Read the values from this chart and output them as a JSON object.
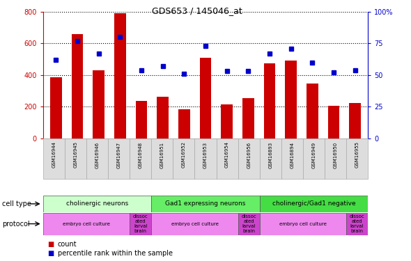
{
  "title": "GDS653 / 145046_at",
  "samples": [
    "GSM16944",
    "GSM16945",
    "GSM16946",
    "GSM16947",
    "GSM16948",
    "GSM16951",
    "GSM16952",
    "GSM16953",
    "GSM16954",
    "GSM16956",
    "GSM16893",
    "GSM16894",
    "GSM16949",
    "GSM16950",
    "GSM16955"
  ],
  "counts": [
    385,
    660,
    430,
    790,
    235,
    265,
    185,
    510,
    215,
    255,
    475,
    490,
    345,
    205,
    225
  ],
  "percentiles": [
    62,
    77,
    67,
    80,
    54,
    57,
    51,
    73,
    53,
    53,
    67,
    71,
    60,
    52,
    54
  ],
  "bar_color": "#cc0000",
  "dot_color": "#0000cc",
  "ylim_left": [
    0,
    800
  ],
  "ylim_right": [
    0,
    100
  ],
  "yticks_left": [
    0,
    200,
    400,
    600,
    800
  ],
  "yticks_right": [
    0,
    25,
    50,
    75,
    100
  ],
  "yticklabels_right": [
    "0",
    "25",
    "50",
    "75",
    "100%"
  ],
  "cell_types": [
    {
      "label": "cholinergic neurons",
      "start": 0,
      "end": 5,
      "color": "#ccffcc"
    },
    {
      "label": "Gad1 expressing neurons",
      "start": 5,
      "end": 10,
      "color": "#66ee66"
    },
    {
      "label": "cholinergic/Gad1 negative",
      "start": 10,
      "end": 15,
      "color": "#44dd44"
    }
  ],
  "protocols": [
    {
      "label": "embryo cell culture",
      "start": 0,
      "end": 4,
      "color": "#ee88ee"
    },
    {
      "label": "dissoc\nated\nlarval\nbrain",
      "start": 4,
      "end": 5,
      "color": "#cc44cc"
    },
    {
      "label": "embryo cell culture",
      "start": 5,
      "end": 9,
      "color": "#ee88ee"
    },
    {
      "label": "dissoc\nated\nlarval\nbrain",
      "start": 9,
      "end": 10,
      "color": "#cc44cc"
    },
    {
      "label": "embryo cell culture",
      "start": 10,
      "end": 14,
      "color": "#ee88ee"
    },
    {
      "label": "dissoc\nated\nlarval\nbrain",
      "start": 14,
      "end": 15,
      "color": "#cc44cc"
    }
  ],
  "legend_count_color": "#cc0000",
  "legend_pct_color": "#0000cc",
  "tick_color_left": "#cc0000",
  "tick_color_right": "#0000cc"
}
